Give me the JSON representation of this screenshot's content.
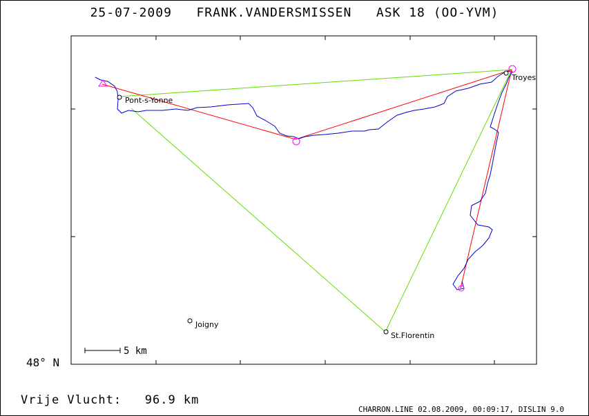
{
  "header": {
    "title": "25-07-2009   FRANK.VANDERSMISSEN   ASK 18 (OO-YVM)"
  },
  "axes": {
    "lat_label": "48° N"
  },
  "scale_bar": {
    "label": "5 km"
  },
  "towns": [
    {
      "name": "Pont-s-Yonne"
    },
    {
      "name": "Troyes"
    },
    {
      "name": "Joigny"
    },
    {
      "name": "St.Florentin"
    }
  ],
  "colors": {
    "track": "#0000cc",
    "task_red": "#ff0000",
    "task_green": "#66dd00",
    "markers": "#ff00ff"
  },
  "footer": {
    "distance": "Vrije Vlucht:   96.9 km",
    "info": "CHARRON.LINE 02.08.2009, 00:09:17, DISLIN 9.0"
  }
}
